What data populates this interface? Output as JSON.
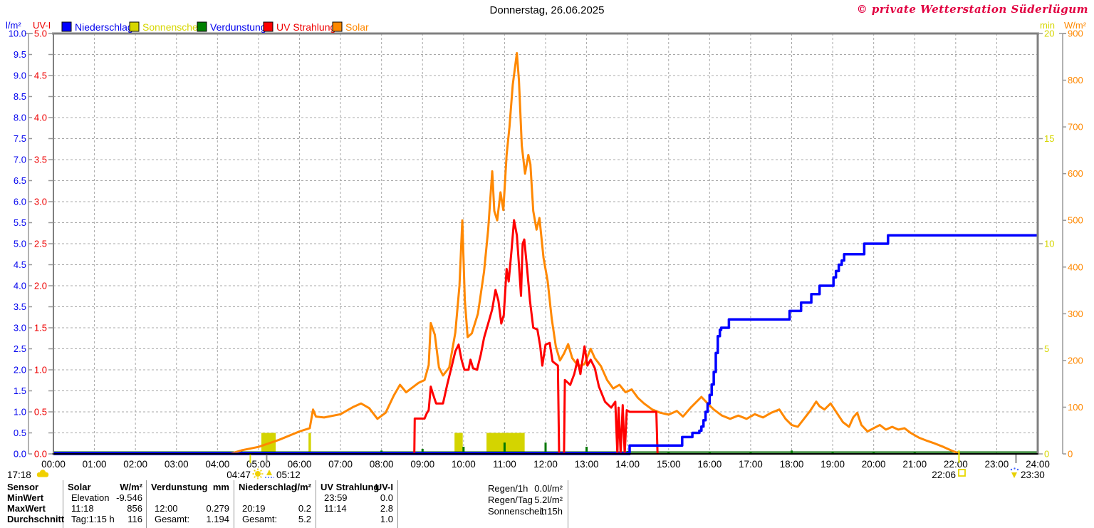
{
  "title": "Donnerstag, 26.06.2025",
  "copyright": "© private Wetterstation Süderlügum",
  "axis_units": {
    "left_outer": "l/m²",
    "left_inner": "UV-I",
    "right_inner": "min",
    "right_outer": "W/m²"
  },
  "legend": [
    {
      "label": "Niederschlag",
      "swatch_color": "#0000ff",
      "text_color": "#0000ee"
    },
    {
      "label": "Sonnenschein",
      "swatch_color": "#d6d600",
      "text_color": "#d6d600"
    },
    {
      "label": "Verdunstung",
      "swatch_color": "#008000",
      "text_color": "#0000ee"
    },
    {
      "label": "UV Strahlung",
      "swatch_color": "#ff0000",
      "text_color": "#ee0000"
    },
    {
      "label": "Solar",
      "swatch_color": "#ff8800",
      "text_color": "#ff8800"
    }
  ],
  "x_axis": {
    "labels": [
      "00:00",
      "01:00",
      "02:00",
      "03:00",
      "04:00",
      "05:00",
      "06:00",
      "07:00",
      "08:00",
      "09:00",
      "10:00",
      "11:00",
      "12:00",
      "13:00",
      "14:00",
      "15:00",
      "16:00",
      "17:00",
      "18:00",
      "19:00",
      "20:00",
      "21:00",
      "22:00",
      "23:00",
      "24:00"
    ]
  },
  "sun_markers": {
    "dawn_time": "04:47",
    "sunrise_time": "05:12",
    "moon_time": "17:18",
    "sunset_time": "22:06",
    "dusk_time": "23:30"
  },
  "chart_data": {
    "type": "line",
    "x_unit": "hour_of_day",
    "x_range": [
      0,
      24
    ],
    "grid": true,
    "axes": {
      "left_outer": {
        "unit": "l/m²",
        "min": 0,
        "max": 10,
        "label_step": 0.5,
        "color": "#0000ee"
      },
      "left_inner": {
        "unit": "UV-I",
        "min": 0,
        "max": 5,
        "label_step": 0.5,
        "color": "#ee0000"
      },
      "right_inner": {
        "unit": "min",
        "min": 0,
        "max": 20,
        "label_step": 5,
        "color": "#d6d600"
      },
      "right_outer": {
        "unit": "W/m²",
        "min": 0,
        "max": 900,
        "label_step": 100,
        "color": "#ff8800"
      }
    },
    "series": [
      {
        "name": "Solar",
        "unit": "W/m²",
        "axis": "right_outer",
        "color": "#ff8800",
        "style": "line",
        "points": [
          [
            4.3,
            0
          ],
          [
            4.6,
            8
          ],
          [
            5,
            15
          ],
          [
            5.5,
            30
          ],
          [
            6,
            48
          ],
          [
            6.25,
            55
          ],
          [
            6.33,
            95
          ],
          [
            6.4,
            80
          ],
          [
            6.6,
            78
          ],
          [
            7,
            85
          ],
          [
            7.3,
            100
          ],
          [
            7.5,
            108
          ],
          [
            7.7,
            98
          ],
          [
            7.9,
            75
          ],
          [
            8.1,
            88
          ],
          [
            8.3,
            125
          ],
          [
            8.45,
            148
          ],
          [
            8.6,
            132
          ],
          [
            8.75,
            142
          ],
          [
            8.9,
            152
          ],
          [
            9.05,
            158
          ],
          [
            9.15,
            190
          ],
          [
            9.2,
            280
          ],
          [
            9.3,
            255
          ],
          [
            9.4,
            185
          ],
          [
            9.5,
            168
          ],
          [
            9.65,
            185
          ],
          [
            9.8,
            260
          ],
          [
            9.9,
            360
          ],
          [
            9.97,
            500
          ],
          [
            10.03,
            330
          ],
          [
            10.1,
            250
          ],
          [
            10.2,
            258
          ],
          [
            10.35,
            300
          ],
          [
            10.5,
            390
          ],
          [
            10.6,
            480
          ],
          [
            10.7,
            605
          ],
          [
            10.75,
            520
          ],
          [
            10.82,
            500
          ],
          [
            10.9,
            560
          ],
          [
            10.97,
            522
          ],
          [
            11.05,
            640
          ],
          [
            11.12,
            700
          ],
          [
            11.2,
            790
          ],
          [
            11.3,
            858
          ],
          [
            11.35,
            800
          ],
          [
            11.42,
            660
          ],
          [
            11.5,
            600
          ],
          [
            11.58,
            640
          ],
          [
            11.63,
            620
          ],
          [
            11.7,
            520
          ],
          [
            11.78,
            480
          ],
          [
            11.85,
            505
          ],
          [
            11.95,
            420
          ],
          [
            12.05,
            370
          ],
          [
            12.15,
            290
          ],
          [
            12.25,
            230
          ],
          [
            12.35,
            200
          ],
          [
            12.45,
            215
          ],
          [
            12.55,
            235
          ],
          [
            12.65,
            205
          ],
          [
            12.8,
            188
          ],
          [
            12.95,
            192
          ],
          [
            13.1,
            225
          ],
          [
            13.2,
            205
          ],
          [
            13.35,
            188
          ],
          [
            13.5,
            158
          ],
          [
            13.65,
            140
          ],
          [
            13.8,
            148
          ],
          [
            13.95,
            132
          ],
          [
            14.1,
            138
          ],
          [
            14.25,
            120
          ],
          [
            14.4,
            108
          ],
          [
            14.6,
            95
          ],
          [
            14.8,
            88
          ],
          [
            15,
            84
          ],
          [
            15.2,
            92
          ],
          [
            15.35,
            80
          ],
          [
            15.55,
            100
          ],
          [
            15.8,
            122
          ],
          [
            15.95,
            108
          ],
          [
            16.1,
            95
          ],
          [
            16.3,
            82
          ],
          [
            16.5,
            75
          ],
          [
            16.7,
            82
          ],
          [
            16.9,
            75
          ],
          [
            17.1,
            85
          ],
          [
            17.3,
            78
          ],
          [
            17.5,
            88
          ],
          [
            17.7,
            95
          ],
          [
            17.85,
            75
          ],
          [
            18,
            62
          ],
          [
            18.15,
            58
          ],
          [
            18.3,
            75
          ],
          [
            18.45,
            92
          ],
          [
            18.6,
            112
          ],
          [
            18.68,
            102
          ],
          [
            18.8,
            95
          ],
          [
            18.95,
            108
          ],
          [
            19.1,
            88
          ],
          [
            19.25,
            68
          ],
          [
            19.4,
            58
          ],
          [
            19.5,
            78
          ],
          [
            19.6,
            88
          ],
          [
            19.7,
            62
          ],
          [
            19.85,
            48
          ],
          [
            20,
            55
          ],
          [
            20.15,
            62
          ],
          [
            20.3,
            52
          ],
          [
            20.45,
            58
          ],
          [
            20.6,
            52
          ],
          [
            20.75,
            55
          ],
          [
            20.9,
            45
          ],
          [
            21.1,
            35
          ],
          [
            21.3,
            28
          ],
          [
            21.5,
            22
          ],
          [
            21.7,
            15
          ],
          [
            21.9,
            7
          ],
          [
            22.05,
            2
          ],
          [
            22.1,
            0
          ]
        ]
      },
      {
        "name": "UV Strahlung",
        "unit": "UV-I",
        "axis": "left_inner",
        "color": "#ff0000",
        "style": "line",
        "points": [
          [
            8.8,
            0
          ],
          [
            8.81,
            0.42
          ],
          [
            9.05,
            0.42
          ],
          [
            9.1,
            0.48
          ],
          [
            9.15,
            0.52
          ],
          [
            9.2,
            0.8
          ],
          [
            9.25,
            0.72
          ],
          [
            9.33,
            0.6
          ],
          [
            9.5,
            0.6
          ],
          [
            9.6,
            0.82
          ],
          [
            9.7,
            1.02
          ],
          [
            9.8,
            1.22
          ],
          [
            9.88,
            1.3
          ],
          [
            9.95,
            1.12
          ],
          [
            10.02,
            1.0
          ],
          [
            10.12,
            1.0
          ],
          [
            10.17,
            1.12
          ],
          [
            10.23,
            1.02
          ],
          [
            10.33,
            1.0
          ],
          [
            10.42,
            1.18
          ],
          [
            10.5,
            1.38
          ],
          [
            10.6,
            1.55
          ],
          [
            10.7,
            1.72
          ],
          [
            10.78,
            1.95
          ],
          [
            10.85,
            1.82
          ],
          [
            10.92,
            1.55
          ],
          [
            10.98,
            1.65
          ],
          [
            11.05,
            2.2
          ],
          [
            11.1,
            2.05
          ],
          [
            11.17,
            2.42
          ],
          [
            11.23,
            2.78
          ],
          [
            11.3,
            2.6
          ],
          [
            11.35,
            2.25
          ],
          [
            11.4,
            1.88
          ],
          [
            11.44,
            2.5
          ],
          [
            11.48,
            2.55
          ],
          [
            11.55,
            2.2
          ],
          [
            11.62,
            1.82
          ],
          [
            11.7,
            1.5
          ],
          [
            11.8,
            1.48
          ],
          [
            11.87,
            1.28
          ],
          [
            11.92,
            1.05
          ],
          [
            12,
            1.3
          ],
          [
            12.1,
            1.32
          ],
          [
            12.17,
            1.1
          ],
          [
            12.3,
            1.05
          ],
          [
            12.33,
            0
          ],
          [
            12.45,
            0
          ],
          [
            12.47,
            0.88
          ],
          [
            12.6,
            0.82
          ],
          [
            12.7,
            0.95
          ],
          [
            12.78,
            1.12
          ],
          [
            12.85,
            0.95
          ],
          [
            12.95,
            1.28
          ],
          [
            13.02,
            1.05
          ],
          [
            13.1,
            1.12
          ],
          [
            13.2,
            1.02
          ],
          [
            13.3,
            0.8
          ],
          [
            13.45,
            0.62
          ],
          [
            13.6,
            0.55
          ],
          [
            13.7,
            0.62
          ],
          [
            13.75,
            0
          ],
          [
            13.78,
            0.55
          ],
          [
            13.83,
            0
          ],
          [
            13.88,
            0.58
          ],
          [
            13.93,
            0
          ],
          [
            13.98,
            0.52
          ],
          [
            14.05,
            0.5
          ],
          [
            14.7,
            0.5
          ],
          [
            14.73,
            0
          ]
        ]
      },
      {
        "name": "Niederschlag",
        "unit": "l/m²",
        "axis": "left_outer",
        "color": "#0000ff",
        "style": "step",
        "points": [
          [
            0,
            0
          ],
          [
            14.03,
            0
          ],
          [
            14.05,
            0.2
          ],
          [
            15.3,
            0.2
          ],
          [
            15.33,
            0.4
          ],
          [
            15.55,
            0.4
          ],
          [
            15.58,
            0.5
          ],
          [
            15.75,
            0.55
          ],
          [
            15.8,
            0.65
          ],
          [
            15.85,
            0.8
          ],
          [
            15.9,
            1.0
          ],
          [
            15.95,
            1.2
          ],
          [
            16,
            1.4
          ],
          [
            16.05,
            1.65
          ],
          [
            16.1,
            1.95
          ],
          [
            16.15,
            2.4
          ],
          [
            16.2,
            2.8
          ],
          [
            16.25,
            2.95
          ],
          [
            16.28,
            3.0
          ],
          [
            16.45,
            3.0
          ],
          [
            16.47,
            3.2
          ],
          [
            17.92,
            3.2
          ],
          [
            17.95,
            3.4
          ],
          [
            18.2,
            3.4
          ],
          [
            18.23,
            3.6
          ],
          [
            18.45,
            3.6
          ],
          [
            18.48,
            3.8
          ],
          [
            18.65,
            3.8
          ],
          [
            18.68,
            4.0
          ],
          [
            18.97,
            4.0
          ],
          [
            19.02,
            4.2
          ],
          [
            19.08,
            4.35
          ],
          [
            19.15,
            4.5
          ],
          [
            19.22,
            4.6
          ],
          [
            19.28,
            4.75
          ],
          [
            19.73,
            4.75
          ],
          [
            19.77,
            5.0
          ],
          [
            20.3,
            5.0
          ],
          [
            20.35,
            5.2
          ],
          [
            24,
            5.2
          ]
        ]
      },
      {
        "name": "Sonnenschein",
        "unit": "min",
        "axis": "right_inner",
        "color": "#d4d400",
        "style": "bar",
        "bars": [
          {
            "from": 5.07,
            "to": 5.42,
            "value": 1
          },
          {
            "from": 6.22,
            "to": 6.28,
            "value": 1
          },
          {
            "from": 9.78,
            "to": 9.98,
            "value": 1
          },
          {
            "from": 10.56,
            "to": 11.49,
            "value": 1
          }
        ]
      },
      {
        "name": "Verdunstung",
        "unit": "mm",
        "axis": "left_outer",
        "color": "#007700",
        "style": "spike",
        "points": [
          [
            5,
            0.02
          ],
          [
            6,
            0.03
          ],
          [
            7,
            0.05
          ],
          [
            8,
            0.08
          ],
          [
            9,
            0.12
          ],
          [
            10,
            0.17
          ],
          [
            11,
            0.27
          ],
          [
            12,
            0.27
          ],
          [
            13,
            0.17
          ],
          [
            14,
            0.07
          ],
          [
            15,
            0.05
          ],
          [
            16,
            0.05
          ],
          [
            17,
            0.05
          ],
          [
            18,
            0.08
          ],
          [
            19,
            0.06
          ],
          [
            20,
            0.04
          ],
          [
            21,
            0.03
          ]
        ]
      }
    ]
  },
  "stats_table": {
    "row_headers": [
      "Sensor",
      "MinWert",
      "MaxWert",
      "Durchschnitt"
    ],
    "columns": [
      {
        "name": "Solar",
        "unit": "W/m²",
        "rows": [
          [
            "Elevation",
            "-9.546"
          ],
          [
            "11:18",
            "856"
          ],
          [
            "Tag:1:15 h",
            "116"
          ]
        ]
      },
      {
        "name": "Verdunstung",
        "unit": "mm",
        "rows": [
          [
            "",
            ""
          ],
          [
            "12:00",
            "0.279"
          ],
          [
            "Gesamt:",
            "1.194"
          ]
        ]
      },
      {
        "name": "Niederschlag",
        "unit": "l/m²",
        "rows": [
          [
            "",
            ""
          ],
          [
            "20:19",
            "0.2"
          ],
          [
            "Gesamt:",
            "5.2"
          ]
        ]
      },
      {
        "name": "UV Strahlung",
        "unit": "UV-I",
        "rows": [
          [
            "23:59",
            "0.0"
          ],
          [
            "11:14",
            "2.8"
          ],
          [
            "",
            "1.0"
          ]
        ]
      }
    ],
    "summary": [
      [
        "Regen/1h",
        "0.0l/m²"
      ],
      [
        "Regen/Tag",
        "5.2l/m²"
      ],
      [
        "Sonnenschein",
        "1:15h"
      ]
    ]
  }
}
